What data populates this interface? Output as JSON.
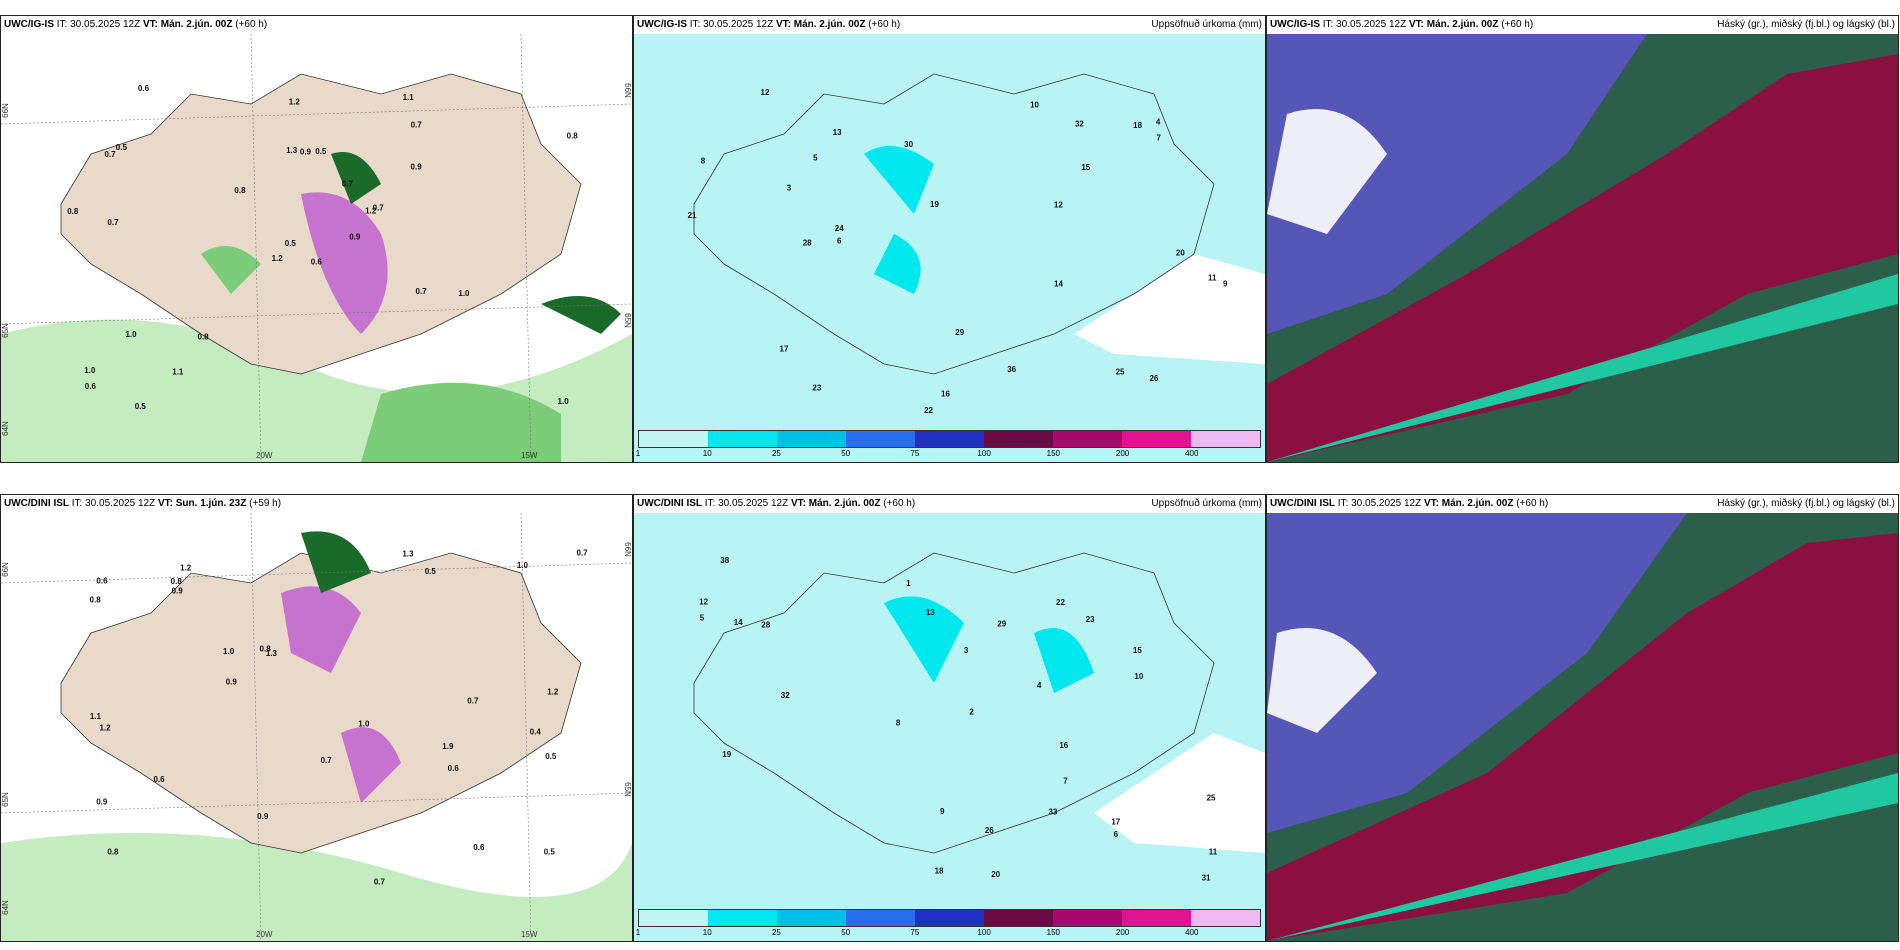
{
  "panels": [
    {
      "model": "UWC/IG-IS",
      "it": "IT: 30.05.2025 12Z",
      "vt": "VT: Mán. 2.jún. 00Z",
      "lead": "(+60 h)",
      "title": "",
      "lon_labels": [
        "20W",
        "15W"
      ],
      "lat_labels": [
        "66N",
        "65N",
        "64N"
      ],
      "lat_right": [
        "66N",
        "65N"
      ]
    },
    {
      "model": "UWC/IG-IS",
      "it": "IT: 30.05.2025 12Z",
      "vt": "VT: Mán. 2.jún. 00Z",
      "lead": "(+60 h)",
      "title": "Uppsöfnuð úrkoma (mm)"
    },
    {
      "model": "UWC/IG-IS",
      "it": "IT: 30.05.2025 12Z",
      "vt": "VT: Mán. 2.jún. 00Z",
      "lead": "(+60 h)",
      "title": "Háský (gr.), miðský (fj.bl.) og lágský (bl.)"
    },
    {
      "model": "UWC/DINI ISL",
      "it": "IT: 30.05.2025 12Z",
      "vt": "VT: Sun. 1.jún. 23Z",
      "lead": "(+59 h)",
      "title": "",
      "lon_labels": [
        "20W",
        "15W"
      ],
      "lat_labels": [
        "66N",
        "65N",
        "64N"
      ],
      "lat_right": [
        "66N",
        "65N"
      ]
    },
    {
      "model": "UWC/DINI ISL",
      "it": "IT: 30.05.2025 12Z",
      "vt": "VT: Mán. 2.jún. 00Z",
      "lead": "(+60 h)",
      "title": "Uppsöfnuð úrkoma (mm)"
    },
    {
      "model": "UWC/DINI ISL",
      "it": "IT: 30.05.2025 12Z",
      "vt": "VT: Mán. 2.jún. 00Z",
      "lead": "(+60 h)",
      "title": "Háský (gr.), miðský (fj.bl.) og lágský (bl.)"
    }
  ],
  "colorbar": {
    "ticks": [
      "1",
      "10",
      "25",
      "50",
      "75",
      "100",
      "150",
      "200",
      "400"
    ],
    "colors": [
      "#bff6f4",
      "#00e8ee",
      "#00c0e8",
      "#2a6ef0",
      "#2030c0",
      "#6a0a44",
      "#a8086c",
      "#e01490",
      "#f0b8f0"
    ]
  },
  "panel1_labels": [
    "0.6",
    "0.7",
    "0.5",
    "1.0",
    "1.2",
    "0.8",
    "1.1",
    "0.5",
    "0.7",
    "0.9",
    "0.6",
    "1.0",
    "0.7",
    "0.8",
    "1.2",
    "0.9",
    "0.5",
    "1.3",
    "0.7",
    "1.0",
    "0.8",
    "0.6",
    "1.1",
    "0.9",
    "0.7",
    "1.0",
    "0.5",
    "1.2",
    "0.8",
    "0.7"
  ],
  "panel4_labels": [
    "1.9",
    "0.4",
    "0.8",
    "1.2",
    "1.3",
    "0.6",
    "0.9",
    "0.5",
    "1.0",
    "0.7",
    "0.8",
    "1.1",
    "0.6",
    "0.5",
    "0.9",
    "1.2",
    "0.7",
    "1.0",
    "0.8",
    "0.6",
    "0.7",
    "1.0",
    "0.9",
    "0.5",
    "1.3",
    "0.8",
    "0.6",
    "1.2",
    "0.9",
    "0.7"
  ],
  "panel2_labels": [
    "8",
    "5",
    "12",
    "16",
    "18",
    "22",
    "14",
    "6",
    "4",
    "9",
    "11",
    "13",
    "15",
    "17",
    "21",
    "23",
    "24",
    "30",
    "26",
    "36",
    "25",
    "20",
    "19",
    "29",
    "32",
    "3",
    "7",
    "10",
    "12",
    "28"
  ],
  "panel5_labels": [
    "3",
    "6",
    "12",
    "15",
    "18",
    "13",
    "20",
    "22",
    "32",
    "19",
    "17",
    "29",
    "16",
    "14",
    "11",
    "23",
    "25",
    "33",
    "26",
    "7",
    "5",
    "9",
    "4",
    "8",
    "10",
    "28",
    "38",
    "31",
    "2",
    "1"
  ],
  "colors": {
    "land": "#e8d9c8",
    "green_light": "#c4ecc0",
    "green_mid": "#7ccc7a",
    "green_dark": "#1a6a2a",
    "magenta": "#c060d0",
    "cyan_bg": "#b8f4f4",
    "cloud_blue": "#5656b8",
    "cloud_red": "#8a1040",
    "cloud_green": "#2c5e4c",
    "cloud_cyan": "#20c8a0"
  }
}
